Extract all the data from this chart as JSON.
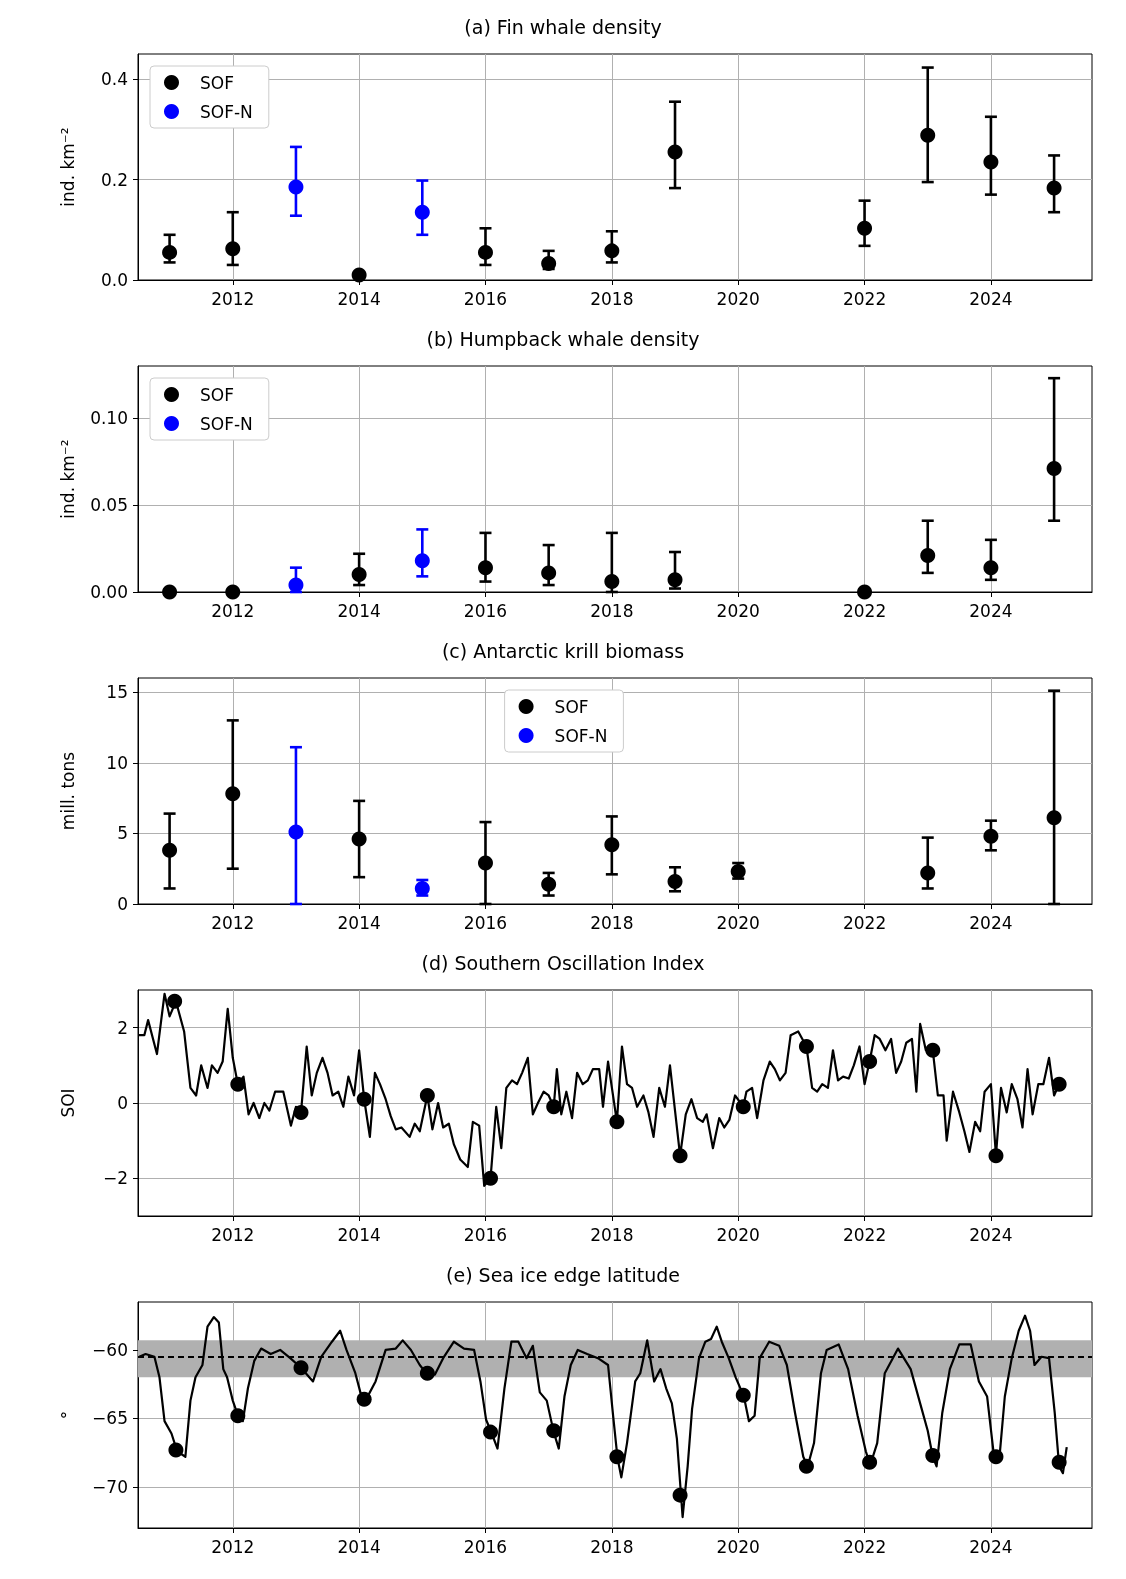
{
  "chart_data": [
    {
      "type": "scatter",
      "title": "(a) Fin whale density",
      "ylabel": "ind. km⁻²",
      "xlim": [
        2010.5,
        2025.6
      ],
      "xticks": [
        2012,
        2014,
        2016,
        2018,
        2020,
        2022,
        2024
      ],
      "ylim": [
        0,
        0.45
      ],
      "yticks": [
        {
          "value": 0,
          "label": "0.0"
        },
        {
          "value": 0.2,
          "label": "0.2"
        },
        {
          "value": 0.4,
          "label": "0.4"
        }
      ],
      "grid": true,
      "legend": "top left",
      "marker": "circle",
      "series": [
        {
          "name": "SOF",
          "color": "#000000",
          "x": [
            2011,
            2012,
            2014,
            2016,
            2017,
            2018,
            2019,
            2022,
            2023,
            2024,
            2025
          ],
          "values": [
            0.055,
            0.062,
            0.01,
            0.055,
            0.033,
            0.058,
            0.255,
            0.103,
            0.288,
            0.235,
            0.183
          ],
          "errors": [
            [
              0.035,
              0.09
            ],
            [
              0.03,
              0.135
            ],
            null,
            [
              0.03,
              0.103
            ],
            [
              0.022,
              0.058
            ],
            [
              0.035,
              0.097
            ],
            [
              0.183,
              0.355
            ],
            [
              0.068,
              0.158
            ],
            [
              0.195,
              0.423
            ],
            [
              0.17,
              0.325
            ],
            [
              0.135,
              0.248
            ]
          ]
        },
        {
          "name": "SOF-N",
          "color": "#0000ff",
          "x": [
            2013,
            2015
          ],
          "values": [
            0.185,
            0.135
          ],
          "errors": [
            [
              0.128,
              0.265
            ],
            [
              0.09,
              0.198
            ]
          ]
        }
      ]
    },
    {
      "type": "scatter",
      "title": "(b) Humpback whale density",
      "ylabel": "ind. km⁻²",
      "xlim": [
        2010.5,
        2025.6
      ],
      "xticks": [
        2012,
        2014,
        2016,
        2018,
        2020,
        2022,
        2024
      ],
      "ylim": [
        0,
        0.13
      ],
      "yticks": [
        {
          "value": 0,
          "label": "0.00"
        },
        {
          "value": 0.05,
          "label": "0.05"
        },
        {
          "value": 0.1,
          "label": "0.10"
        }
      ],
      "grid": true,
      "legend": "top left",
      "marker": "circle",
      "series": [
        {
          "name": "SOF",
          "color": "#000000",
          "x": [
            2011,
            2012,
            2014,
            2016,
            2017,
            2018,
            2019,
            2022,
            2023,
            2024,
            2025
          ],
          "values": [
            0,
            0,
            0.01,
            0.014,
            0.011,
            0.006,
            0.007,
            0,
            0.021,
            0.014,
            0.071
          ],
          "errors": [
            null,
            null,
            [
              0.004,
              0.022
            ],
            [
              0.006,
              0.034
            ],
            [
              0.004,
              0.027
            ],
            [
              0,
              0.034
            ],
            [
              0.002,
              0.023
            ],
            null,
            [
              0.011,
              0.041
            ],
            [
              0.007,
              0.03
            ],
            [
              0.041,
              0.123
            ]
          ]
        },
        {
          "name": "SOF-N",
          "color": "#0000ff",
          "x": [
            2013,
            2015
          ],
          "values": [
            0.004,
            0.018
          ],
          "errors": [
            [
              0,
              0.014
            ],
            [
              0.009,
              0.036
            ]
          ]
        }
      ]
    },
    {
      "type": "scatter",
      "title": "(c) Antarctic krill biomass",
      "ylabel": "mill. tons",
      "xlim": [
        2010.5,
        2025.6
      ],
      "xticks": [
        2012,
        2014,
        2016,
        2018,
        2020,
        2022,
        2024
      ],
      "ylim": [
        0,
        16
      ],
      "yticks": [
        0,
        5,
        10,
        15
      ],
      "grid": true,
      "legend": "top",
      "marker": "circle",
      "series": [
        {
          "name": "SOF",
          "color": "#000000",
          "x": [
            2011,
            2012,
            2014,
            2016,
            2017,
            2018,
            2019,
            2020,
            2023,
            2024,
            2025
          ],
          "values": [
            3.8,
            7.8,
            4.6,
            2.9,
            1.4,
            4.2,
            1.6,
            2.3,
            2.2,
            4.8,
            6.1
          ],
          "errors": [
            [
              1.1,
              6.4
            ],
            [
              2.5,
              13.0
            ],
            [
              1.9,
              7.3
            ],
            [
              0,
              5.8
            ],
            [
              0.6,
              2.2
            ],
            [
              2.1,
              6.2
            ],
            [
              0.9,
              2.6
            ],
            [
              1.8,
              2.9
            ],
            [
              1.1,
              4.7
            ],
            [
              3.8,
              5.9
            ],
            [
              0,
              15.1
            ]
          ]
        },
        {
          "name": "SOF-N",
          "color": "#0000ff",
          "x": [
            2013,
            2015
          ],
          "values": [
            5.1,
            1.1
          ],
          "errors": [
            [
              0,
              11.1
            ],
            [
              0.6,
              1.7
            ]
          ]
        }
      ]
    },
    {
      "type": "scatter",
      "title": "(d) Southern Oscillation Index",
      "ylabel": "SOI",
      "xlim": [
        2010.5,
        2025.6
      ],
      "xticks": [
        2012,
        2014,
        2016,
        2018,
        2020,
        2022,
        2024
      ],
      "ylim": [
        -3,
        3
      ],
      "yticks": [
        {
          "value": -2,
          "label": "−2"
        },
        0,
        2
      ],
      "grid": true,
      "marker": "circle",
      "line_style": "solid",
      "series": [
        {
          "type": "line",
          "marker": "none",
          "color": "#000000",
          "x": [
            2010.51,
            2010.6,
            2010.66,
            2010.8,
            2010.92,
            2011.0,
            2011.1,
            2011.23,
            2011.33,
            2011.42,
            2011.5,
            2011.6,
            2011.67,
            2011.76,
            2011.84,
            2011.92,
            2012.0,
            2012.08,
            2012.17,
            2012.25,
            2012.33,
            2012.42,
            2012.5,
            2012.58,
            2012.67,
            2012.8,
            2012.92,
            2013.0,
            2013.08,
            2013.17,
            2013.25,
            2013.33,
            2013.42,
            2013.5,
            2013.58,
            2013.67,
            2013.75,
            2013.83,
            2013.92,
            2014.0,
            2014.08,
            2014.17,
            2014.25,
            2014.33,
            2014.42,
            2014.5,
            2014.58,
            2014.67,
            2014.8,
            2014.88,
            2014.96,
            2015.08,
            2015.16,
            2015.25,
            2015.33,
            2015.42,
            2015.5,
            2015.6,
            2015.72,
            2015.8,
            2015.9,
            2015.98,
            2016.08,
            2016.17,
            2016.25,
            2016.33,
            2016.42,
            2016.5,
            2016.58,
            2016.67,
            2016.75,
            2016.83,
            2016.92,
            2017.0,
            2017.08,
            2017.13,
            2017.2,
            2017.28,
            2017.37,
            2017.45,
            2017.54,
            2017.62,
            2017.7,
            2017.8,
            2017.86,
            2017.94,
            2018.08,
            2018.16,
            2018.24,
            2018.32,
            2018.4,
            2018.5,
            2018.58,
            2018.66,
            2018.75,
            2018.84,
            2018.92,
            2019.0,
            2019.08,
            2019.17,
            2019.26,
            2019.35,
            2019.44,
            2019.5,
            2019.6,
            2019.7,
            2019.78,
            2019.86,
            2019.95,
            2020.08,
            2020.13,
            2020.22,
            2020.3,
            2020.4,
            2020.5,
            2020.58,
            2020.66,
            2020.75,
            2020.83,
            2020.95,
            2021.08,
            2021.17,
            2021.25,
            2021.33,
            2021.42,
            2021.5,
            2021.58,
            2021.66,
            2021.75,
            2021.83,
            2021.92,
            2022.0,
            2022.08,
            2022.16,
            2022.24,
            2022.33,
            2022.42,
            2022.5,
            2022.58,
            2022.66,
            2022.75,
            2022.82,
            2022.88,
            2022.97,
            2023.08,
            2023.16,
            2023.25,
            2023.3,
            2023.4,
            2023.5,
            2023.58,
            2023.66,
            2023.75,
            2023.83,
            2023.9,
            2024.0,
            2024.08,
            2024.16,
            2024.25,
            2024.33,
            2024.42,
            2024.5,
            2024.58,
            2024.66,
            2024.75,
            2024.83,
            2024.92,
            2025.0,
            2025.08
          ],
          "values": [
            1.8,
            1.8,
            2.2,
            1.3,
            2.9,
            2.3,
            2.7,
            1.9,
            0.4,
            0.2,
            1.0,
            0.4,
            1.0,
            0.8,
            1.1,
            2.5,
            1.2,
            0.5,
            0.7,
            -0.3,
            0.0,
            -0.4,
            0.0,
            -0.2,
            0.3,
            0.3,
            -0.6,
            -0.1,
            -0.25,
            1.5,
            0.2,
            0.8,
            1.2,
            0.8,
            0.2,
            0.3,
            -0.1,
            0.7,
            0.2,
            1.4,
            0.1,
            -0.9,
            0.8,
            0.5,
            0.1,
            -0.35,
            -0.7,
            -0.65,
            -0.9,
            -0.55,
            -0.75,
            0.2,
            -0.7,
            0.0,
            -0.65,
            -0.55,
            -1.1,
            -1.5,
            -1.7,
            -0.5,
            -0.6,
            -2.2,
            -2.0,
            -0.1,
            -1.2,
            0.4,
            0.6,
            0.5,
            0.8,
            1.2,
            -0.3,
            0.0,
            0.3,
            0.2,
            -0.1,
            0.9,
            -0.3,
            0.3,
            -0.4,
            0.8,
            0.5,
            0.6,
            0.9,
            0.9,
            -0.1,
            1.1,
            -0.5,
            1.5,
            0.5,
            0.4,
            -0.1,
            0.2,
            -0.25,
            -0.9,
            0.4,
            -0.1,
            1.0,
            -0.2,
            -1.4,
            -0.3,
            0.1,
            -0.4,
            -0.5,
            -0.3,
            -1.2,
            -0.4,
            -0.65,
            -0.45,
            0.2,
            -0.1,
            0.3,
            0.4,
            -0.4,
            0.6,
            1.1,
            0.9,
            0.6,
            0.8,
            1.8,
            1.9,
            1.5,
            0.4,
            0.3,
            0.5,
            0.4,
            1.4,
            0.6,
            0.7,
            0.65,
            1.0,
            1.5,
            0.5,
            1.1,
            1.8,
            1.7,
            1.4,
            1.7,
            0.8,
            1.1,
            1.6,
            1.7,
            0.3,
            2.1,
            1.4,
            1.4,
            0.2,
            0.2,
            -1.0,
            0.3,
            -0.25,
            -0.75,
            -1.3,
            -0.5,
            -0.75,
            0.3,
            0.5,
            -1.4,
            0.4,
            -0.25,
            0.5,
            0.1,
            -0.65,
            0.9,
            -0.3,
            0.5,
            0.5,
            1.2,
            0.2,
            0.5
          ]
        },
        {
          "color": "#000000",
          "x": [
            2011.08,
            2012.08,
            2013.08,
            2014.08,
            2015.08,
            2016.08,
            2017.08,
            2018.08,
            2019.08,
            2020.08,
            2021.08,
            2022.08,
            2023.08,
            2024.08,
            2025.08
          ],
          "values": [
            2.7,
            0.5,
            -0.25,
            0.1,
            0.2,
            -2.0,
            -0.1,
            -0.5,
            -1.4,
            -0.1,
            1.5,
            1.1,
            1.4,
            -1.4,
            0.5
          ]
        }
      ]
    },
    {
      "type": "scatter",
      "title": "(e) Sea ice edge latitude",
      "ylabel": "°",
      "xlim": [
        2010.5,
        2025.6
      ],
      "xticks": [
        2012,
        2014,
        2016,
        2018,
        2020,
        2022,
        2024
      ],
      "ylim": [
        -73,
        -56.5
      ],
      "yticks": [
        {
          "value": -70,
          "label": "−70"
        },
        {
          "value": -65,
          "label": "−65"
        },
        {
          "value": -60,
          "label": "−60"
        }
      ],
      "grid": true,
      "marker": "circle",
      "line_style": "solid",
      "ref_lines": [
        {
          "axis": "y",
          "value": -60.5,
          "color": "#000000",
          "line_style": "dashed"
        }
      ],
      "bands": [
        {
          "axis": "y",
          "from": -62,
          "to": -59.3,
          "color": "#b0b0b0"
        }
      ],
      "series": [
        {
          "type": "line",
          "marker": "none",
          "color": "#000000",
          "x": [
            2010.52,
            2010.62,
            2010.76,
            2010.84,
            2010.92,
            2011.03,
            2011.12,
            2011.25,
            2011.33,
            2011.41,
            2011.52,
            2011.6,
            2011.7,
            2011.78,
            2011.85,
            2011.91,
            2012.0,
            2012.09,
            2012.16,
            2012.24,
            2012.34,
            2012.45,
            2012.6,
            2012.75,
            2012.91,
            2013.08,
            2013.27,
            2013.4,
            2013.57,
            2013.7,
            2013.8,
            2013.94,
            2014.02,
            2014.1,
            2014.26,
            2014.42,
            2014.58,
            2014.69,
            2014.82,
            2014.96,
            2015.08,
            2015.2,
            2015.33,
            2015.5,
            2015.66,
            2015.82,
            2015.92,
            2016.01,
            2016.1,
            2016.19,
            2016.3,
            2016.41,
            2016.52,
            2016.65,
            2016.75,
            2016.86,
            2016.97,
            2017.08,
            2017.16,
            2017.25,
            2017.35,
            2017.46,
            2017.61,
            2017.78,
            2017.94,
            2018.02,
            2018.09,
            2018.15,
            2018.24,
            2018.37,
            2018.45,
            2018.56,
            2018.67,
            2018.77,
            2018.86,
            2018.95,
            2019.03,
            2019.12,
            2019.2,
            2019.27,
            2019.38,
            2019.48,
            2019.57,
            2019.66,
            2019.74,
            2019.85,
            2019.96,
            2020.09,
            2020.17,
            2020.26,
            2020.34,
            2020.49,
            2020.65,
            2020.77,
            2020.9,
            2021.03,
            2021.1,
            2021.2,
            2021.31,
            2021.4,
            2021.59,
            2021.74,
            2021.89,
            2022.02,
            2022.09,
            2022.2,
            2022.32,
            2022.53,
            2022.73,
            2022.88,
            2023.0,
            2023.08,
            2023.14,
            2023.23,
            2023.35,
            2023.5,
            2023.68,
            2023.81,
            2023.94,
            2024.05,
            2024.14,
            2024.22,
            2024.33,
            2024.44,
            2024.54,
            2024.62,
            2024.69,
            2024.8,
            2024.92,
            2025.01,
            2025.08,
            2025.14,
            2025.2
          ],
          "values": [
            -60.5,
            -60.3,
            -60.5,
            -62,
            -65.2,
            -66.1,
            -67.4,
            -67.8,
            -63.7,
            -62,
            -61.1,
            -58.3,
            -57.6,
            -58,
            -61.4,
            -62,
            -63.7,
            -64.9,
            -65.2,
            -62.8,
            -60.8,
            -59.9,
            -60.3,
            -60,
            -60.6,
            -61.3,
            -62.3,
            -60.5,
            -59.4,
            -58.6,
            -60,
            -61.7,
            -63.1,
            -63.7,
            -62.3,
            -60,
            -59.9,
            -59.3,
            -60,
            -61.1,
            -61.8,
            -61.8,
            -60.6,
            -59.4,
            -59.9,
            -60,
            -62.3,
            -65.1,
            -66.1,
            -67.2,
            -62.8,
            -59.4,
            -59.4,
            -60.6,
            -59.7,
            -63.1,
            -63.7,
            -66,
            -67.2,
            -63.4,
            -61.1,
            -60,
            -60.3,
            -60.6,
            -61.1,
            -64.8,
            -67.9,
            -69.3,
            -66.8,
            -62.3,
            -61.7,
            -59.3,
            -62.3,
            -61.4,
            -62.8,
            -63.9,
            -66.5,
            -72.2,
            -68.5,
            -64.3,
            -60.6,
            -59.4,
            -59.2,
            -58.3,
            -59.4,
            -60.6,
            -62,
            -63.4,
            -65.2,
            -64.8,
            -60.6,
            -59.4,
            -59.7,
            -61.1,
            -64.6,
            -67.8,
            -68.5,
            -66.8,
            -61.7,
            -60,
            -59.6,
            -61.4,
            -64.8,
            -67.4,
            -68.4,
            -66.8,
            -61.7,
            -59.9,
            -61.4,
            -63.9,
            -65.9,
            -67.8,
            -68.5,
            -64.6,
            -61.4,
            -59.6,
            -59.6,
            -62.3,
            -63.4,
            -67.8,
            -67.6,
            -63.4,
            -60.6,
            -58.6,
            -57.5,
            -58.6,
            -61.1,
            -60.5,
            -60.6,
            -64.6,
            -68.5,
            -69,
            -67.1
          ]
        },
        {
          "color": "#000000",
          "x": [
            2011.1,
            2012.08,
            2013.08,
            2014.08,
            2015.08,
            2016.08,
            2017.08,
            2018.08,
            2019.08,
            2020.08,
            2021.08,
            2022.08,
            2023.08,
            2024.08,
            2025.08
          ],
          "values": [
            -67.3,
            -64.8,
            -61.3,
            -63.6,
            -61.7,
            -66.0,
            -65.9,
            -67.8,
            -70.6,
            -63.3,
            -68.5,
            -68.2,
            -67.7,
            -67.8,
            -68.2
          ]
        }
      ]
    }
  ]
}
